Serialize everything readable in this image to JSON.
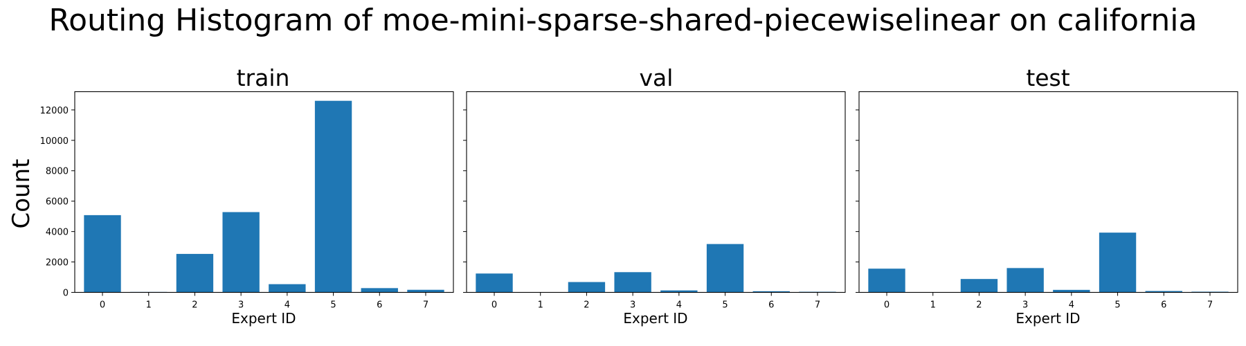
{
  "figure": {
    "title": "Routing Histogram of moe-mini-sparse-shared-piecewiselinear on california",
    "ylabel": "Count",
    "bar_color": "#1f77b4"
  },
  "chart_data": [
    {
      "type": "bar",
      "title": "train",
      "xlabel": "Expert ID",
      "ylabel": "Count",
      "categories": [
        "0",
        "1",
        "2",
        "3",
        "4",
        "5",
        "6",
        "7"
      ],
      "values": [
        5080,
        30,
        2530,
        5280,
        540,
        12600,
        280,
        170
      ],
      "ylim": [
        0,
        13200
      ],
      "yticks": [
        0,
        2000,
        4000,
        6000,
        8000,
        10000,
        12000
      ],
      "grid": false
    },
    {
      "type": "bar",
      "title": "val",
      "xlabel": "Expert ID",
      "categories": [
        "0",
        "1",
        "2",
        "3",
        "4",
        "5",
        "6",
        "7"
      ],
      "values": [
        1240,
        5,
        680,
        1330,
        130,
        3180,
        75,
        40
      ],
      "ylim": [
        0,
        13200
      ],
      "grid": false
    },
    {
      "type": "bar",
      "title": "test",
      "xlabel": "Expert ID",
      "categories": [
        "0",
        "1",
        "2",
        "3",
        "4",
        "5",
        "6",
        "7"
      ],
      "values": [
        1560,
        10,
        880,
        1600,
        165,
        3930,
        90,
        45
      ],
      "ylim": [
        0,
        13200
      ],
      "grid": false
    }
  ]
}
